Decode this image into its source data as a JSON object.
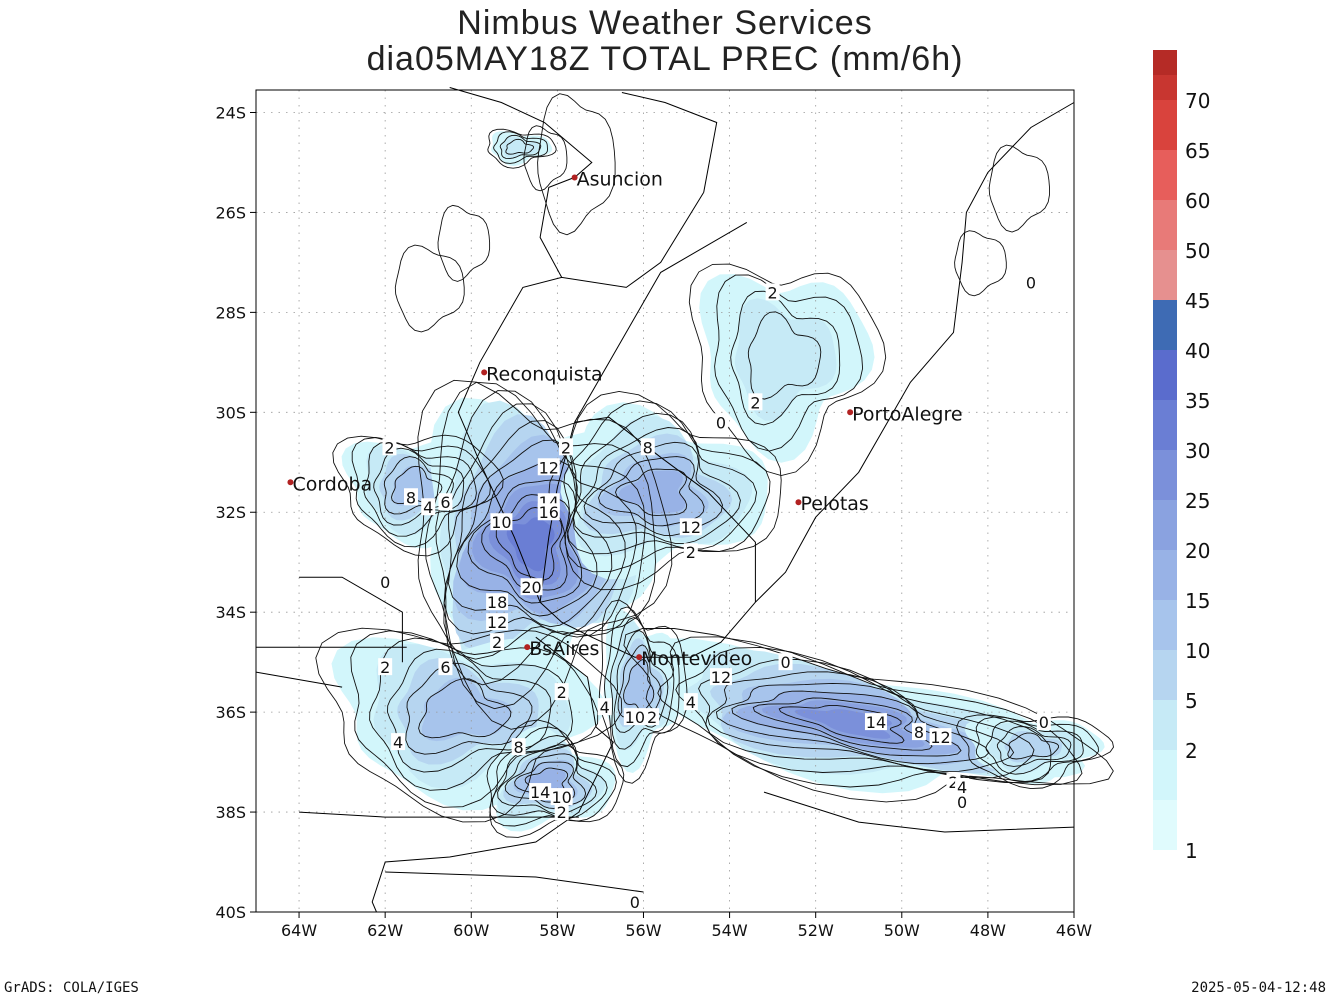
{
  "title_line1": "Nimbus Weather Services",
  "title_line2": "dia05MAY18Z TOTAL PREC (mm/6h)",
  "footer_left": "GrADS: COLA/IGES",
  "footer_right": "2025-05-04-12:48",
  "axes": {
    "lat_labels": [
      "24S",
      "26S",
      "28S",
      "30S",
      "32S",
      "34S",
      "36S",
      "38S",
      "40S"
    ],
    "lon_labels": [
      "64W",
      "62W",
      "60W",
      "58W",
      "56W",
      "54W",
      "52W",
      "50W",
      "48W",
      "46W"
    ]
  },
  "cities": [
    {
      "name": "Asuncion",
      "lon": -57.6,
      "lat": -25.3
    },
    {
      "name": "Reconquista",
      "lon": -59.7,
      "lat": -29.2
    },
    {
      "name": "PortoAlegre",
      "lon": -51.2,
      "lat": -30.0
    },
    {
      "name": "Cordoba",
      "lon": -64.2,
      "lat": -31.4
    },
    {
      "name": "Pelotas",
      "lon": -52.4,
      "lat": -31.8
    },
    {
      "name": "BsAires",
      "lon": -58.7,
      "lat": -34.7
    },
    {
      "name": "Montevideo",
      "lon": -56.1,
      "lat": -34.9
    }
  ],
  "colorbar": {
    "levels": [
      {
        "value": "1",
        "color": "#e0fbfd"
      },
      {
        "value": "2",
        "color": "#d2f6fb"
      },
      {
        "value": "5",
        "color": "#c6eaf6"
      },
      {
        "value": "10",
        "color": "#b6d5f0"
      },
      {
        "value": "15",
        "color": "#a7c4ec"
      },
      {
        "value": "20",
        "color": "#98b2e6"
      },
      {
        "value": "25",
        "color": "#8aa2e0"
      },
      {
        "value": "30",
        "color": "#7b90da"
      },
      {
        "value": "35",
        "color": "#6a7ed4"
      },
      {
        "value": "40",
        "color": "#5a6ccd"
      },
      {
        "value": "45",
        "color": "#3e6bb4"
      },
      {
        "value": "50",
        "color": "#e6908f"
      },
      {
        "value": "60",
        "color": "#e87a78"
      },
      {
        "value": "65",
        "color": "#e75e5b"
      },
      {
        "value": "70",
        "color": "#d9433d"
      },
      {
        "value": "",
        "color": "#c83630"
      },
      {
        "value": "",
        "color": "#b52b26"
      }
    ]
  },
  "contour_labels": [
    {
      "text": "2",
      "lon": -53.0,
      "lat": -27.6
    },
    {
      "text": "2",
      "lon": -53.4,
      "lat": -29.8
    },
    {
      "text": "0",
      "lon": -54.2,
      "lat": -30.2
    },
    {
      "text": "0",
      "lon": -47.0,
      "lat": -27.4
    },
    {
      "text": "2",
      "lon": -61.9,
      "lat": -30.7
    },
    {
      "text": "8",
      "lon": -61.4,
      "lat": -31.7
    },
    {
      "text": "4",
      "lon": -61.0,
      "lat": -31.9
    },
    {
      "text": "6",
      "lon": -60.6,
      "lat": -31.8
    },
    {
      "text": "10",
      "lon": -59.3,
      "lat": -32.2
    },
    {
      "text": "2",
      "lon": -57.8,
      "lat": -30.7
    },
    {
      "text": "12",
      "lon": -58.2,
      "lat": -31.1
    },
    {
      "text": "14",
      "lon": -58.2,
      "lat": -31.8
    },
    {
      "text": "16",
      "lon": -58.2,
      "lat": -32.0
    },
    {
      "text": "8",
      "lon": -55.9,
      "lat": -30.7
    },
    {
      "text": "12",
      "lon": -54.9,
      "lat": -32.3
    },
    {
      "text": "2",
      "lon": -54.9,
      "lat": -32.8
    },
    {
      "text": "20",
      "lon": -58.6,
      "lat": -33.5
    },
    {
      "text": "18",
      "lon": -59.4,
      "lat": -33.8
    },
    {
      "text": "12",
      "lon": -59.4,
      "lat": -34.2
    },
    {
      "text": "2",
      "lon": -59.4,
      "lat": -34.6
    },
    {
      "text": "0",
      "lon": -62.0,
      "lat": -33.4
    },
    {
      "text": "2",
      "lon": -62.0,
      "lat": -35.1
    },
    {
      "text": "6",
      "lon": -60.6,
      "lat": -35.1
    },
    {
      "text": "4",
      "lon": -61.7,
      "lat": -36.6
    },
    {
      "text": "8",
      "lon": -58.9,
      "lat": -36.7
    },
    {
      "text": "2",
      "lon": -57.9,
      "lat": -35.6
    },
    {
      "text": "4",
      "lon": -56.9,
      "lat": -35.9
    },
    {
      "text": "10",
      "lon": -56.2,
      "lat": -36.1
    },
    {
      "text": "2",
      "lon": -55.8,
      "lat": -36.1
    },
    {
      "text": "4",
      "lon": -54.9,
      "lat": -35.8
    },
    {
      "text": "12",
      "lon": -54.2,
      "lat": -35.3
    },
    {
      "text": "0",
      "lon": -52.7,
      "lat": -35.0
    },
    {
      "text": "14",
      "lon": -58.4,
      "lat": -37.6
    },
    {
      "text": "10",
      "lon": -57.9,
      "lat": -37.7
    },
    {
      "text": "2",
      "lon": -57.9,
      "lat": -38.0
    },
    {
      "text": "14",
      "lon": -50.6,
      "lat": -36.2
    },
    {
      "text": "8",
      "lon": -49.6,
      "lat": -36.4
    },
    {
      "text": "12",
      "lon": -49.1,
      "lat": -36.5
    },
    {
      "text": "2",
      "lon": -48.8,
      "lat": -37.4
    },
    {
      "text": "4",
      "lon": -48.6,
      "lat": -37.5
    },
    {
      "text": "0",
      "lon": -48.6,
      "lat": -37.8
    },
    {
      "text": "0",
      "lon": -46.7,
      "lat": -36.2
    },
    {
      "text": "0",
      "lon": -56.2,
      "lat": -39.8
    }
  ]
}
